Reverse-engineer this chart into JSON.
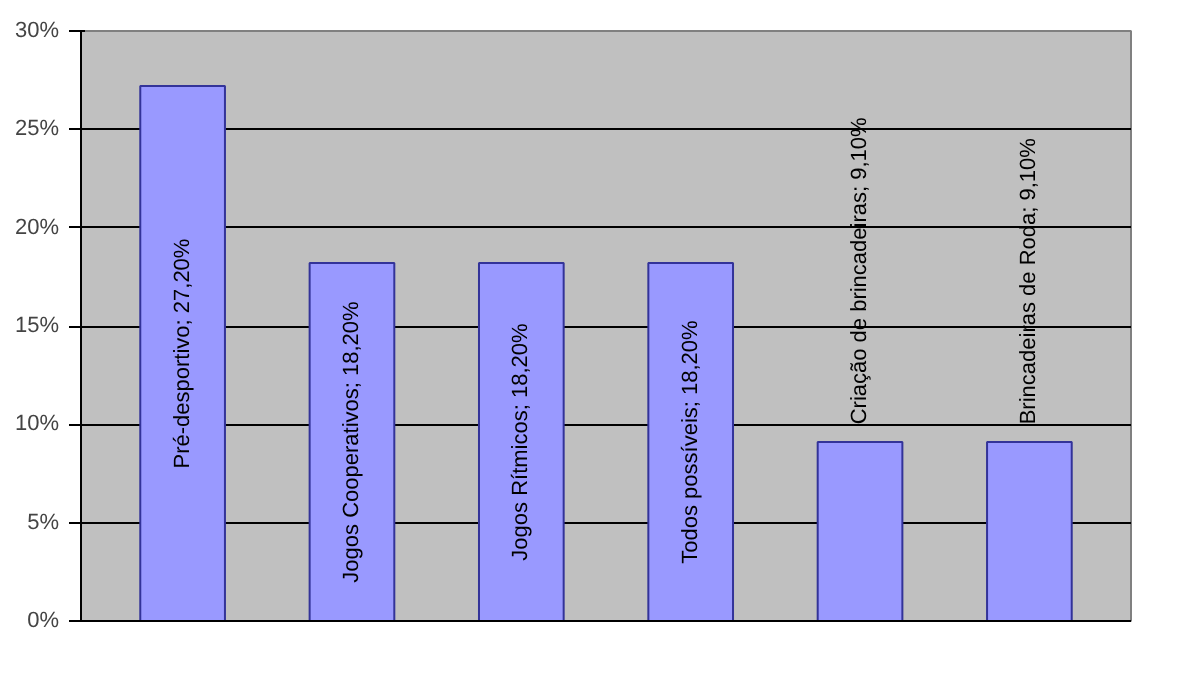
{
  "chart_data": {
    "type": "bar",
    "categories": [
      null,
      null,
      null,
      null,
      null,
      null
    ],
    "values": [
      27.2,
      18.2,
      18.2,
      18.2,
      9.1,
      9.1
    ],
    "color": "#9999ff",
    "value_labels": [
      "Pré-desportivo; 27,20%",
      "Jogos Cooperativos; 18,20%",
      "Jogos Rítmicos; 18,20%",
      "Todos possíveis; 18,20%",
      "Criação de brincadeiras; 9,10%",
      "Brincadeiras de Roda; 9,10%"
    ],
    "ylim": [
      0,
      30
    ],
    "yticks": [
      {
        "value": 0,
        "label": "0%"
      },
      {
        "value": 5,
        "label": "5%"
      },
      {
        "value": 10,
        "label": "10%"
      },
      {
        "value": 15,
        "label": "15%"
      },
      {
        "value": 20,
        "label": "20%"
      },
      {
        "value": 25,
        "label": "25%"
      },
      {
        "value": 30,
        "label": "30%"
      }
    ],
    "grid": "y"
  }
}
